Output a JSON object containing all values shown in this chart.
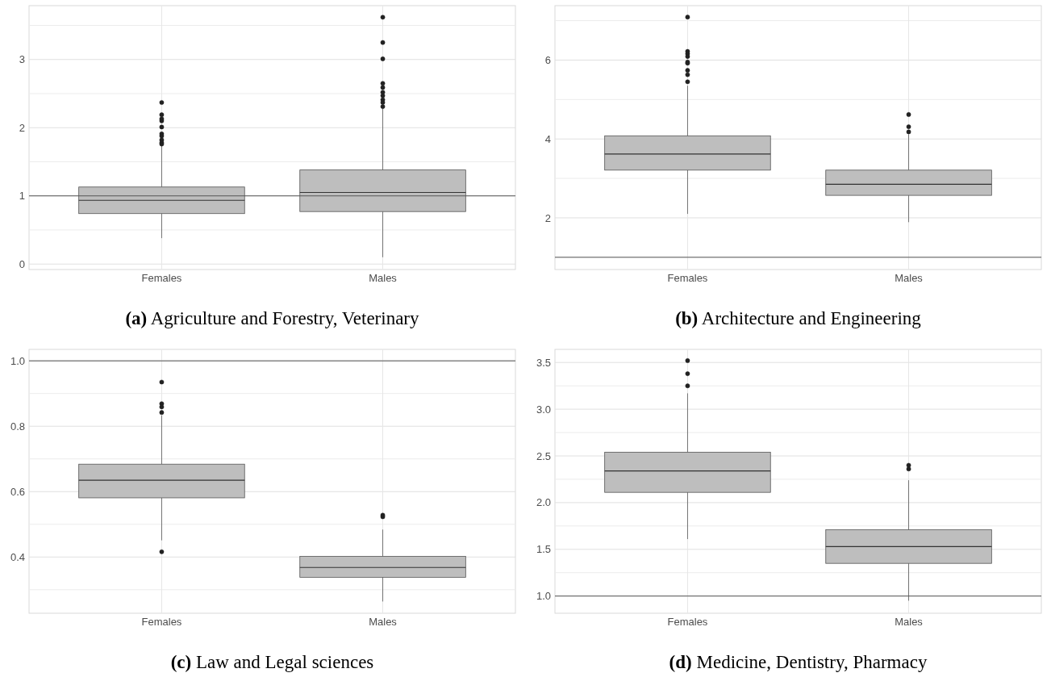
{
  "chart_data": [
    {
      "type": "box",
      "title": "(a) Agriculture and Forestry, Veterinary",
      "categories": [
        "Females",
        "Males"
      ],
      "color": "#bebebe",
      "grid": true,
      "ylim": [
        -0.08,
        3.79
      ],
      "yticks": [
        0,
        {
          "value": 0.5,
          "label": null
        },
        1,
        {
          "value": 1.5,
          "label": null
        },
        2,
        {
          "value": 2.5,
          "label": null
        },
        3,
        {
          "value": 3.5,
          "label": null
        }
      ],
      "boxes": [
        {
          "low": 0.38,
          "q1": 0.74,
          "median": 0.935,
          "q3": 1.13,
          "high": 1.73,
          "outliers": [
            2.37,
            2.19,
            2.13,
            2.1,
            2.01,
            1.91,
            1.88,
            1.82,
            1.78,
            1.76
          ]
        },
        {
          "low": 0.1,
          "q1": 0.77,
          "median": 1.05,
          "q3": 1.38,
          "high": 2.28,
          "outliers": [
            3.62,
            3.25,
            3.01,
            2.65,
            2.59,
            2.52,
            2.47,
            2.41,
            2.37,
            2.31
          ]
        }
      ],
      "ref_lines": [
        {
          "axis": "y",
          "value": 1
        }
      ]
    },
    {
      "type": "box",
      "title": "(b) Architecture and Engineering",
      "categories": [
        "Females",
        "Males"
      ],
      "color": "#bebebe",
      "grid": true,
      "ylim": [
        0.69,
        7.38
      ],
      "yticks": [
        {
          "value": 1,
          "label": null
        },
        2,
        {
          "value": 3,
          "label": null
        },
        4,
        {
          "value": 5,
          "label": null
        },
        6,
        {
          "value": 7,
          "label": null
        }
      ],
      "boxes": [
        {
          "low": 2.1,
          "q1": 3.21,
          "median": 3.62,
          "q3": 4.08,
          "high": 5.35,
          "outliers": [
            7.09,
            6.22,
            6.16,
            6.09,
            5.95,
            5.92,
            5.74,
            5.63,
            5.45
          ]
        },
        {
          "low": 1.89,
          "q1": 2.57,
          "median": 2.85,
          "q3": 3.21,
          "high": 4.12,
          "outliers": [
            4.62,
            4.31,
            4.18
          ]
        }
      ],
      "ref_lines": [
        {
          "axis": "y",
          "value": 1
        }
      ]
    },
    {
      "type": "box",
      "title": "(c) Law and Legal sciences",
      "categories": [
        "Females",
        "Males"
      ],
      "color": "#bebebe",
      "grid": true,
      "ylim": [
        0.228,
        1.035
      ],
      "yticks": [
        {
          "value": 0.3,
          "label": null
        },
        {
          "value": 0.4,
          "label": "0.4"
        },
        {
          "value": 0.5,
          "label": null
        },
        {
          "value": 0.6,
          "label": "0.6"
        },
        {
          "value": 0.7,
          "label": null
        },
        {
          "value": 0.8,
          "label": "0.8"
        },
        {
          "value": 0.9,
          "label": null
        },
        {
          "value": 1,
          "label": "1.0"
        }
      ],
      "boxes": [
        {
          "low": 0.451,
          "q1": 0.581,
          "median": 0.635,
          "q3": 0.684,
          "high": 0.833,
          "outliers": [
            0.935,
            0.869,
            0.859,
            0.842,
            0.416
          ]
        },
        {
          "low": 0.264,
          "q1": 0.338,
          "median": 0.368,
          "q3": 0.402,
          "high": 0.484,
          "outliers": [
            0.528,
            0.523
          ]
        }
      ],
      "ref_lines": [
        {
          "axis": "y",
          "value": 1
        }
      ]
    },
    {
      "type": "box",
      "title": "(d) Medicine, Dentistry, Pharmacy",
      "categories": [
        "Females",
        "Males"
      ],
      "color": "#bebebe",
      "grid": true,
      "ylim": [
        0.816,
        3.64
      ],
      "yticks": [
        {
          "value": 1,
          "label": "1.0"
        },
        {
          "value": 1.25,
          "label": null
        },
        1.5,
        {
          "value": 1.75,
          "label": null
        },
        {
          "value": 2,
          "label": "2.0"
        },
        {
          "value": 2.25,
          "label": null
        },
        2.5,
        {
          "value": 2.75,
          "label": null
        },
        {
          "value": 3,
          "label": "3.0"
        },
        {
          "value": 3.25,
          "label": null
        },
        3.5
      ],
      "boxes": [
        {
          "low": 1.61,
          "q1": 2.11,
          "median": 2.34,
          "q3": 2.54,
          "high": 3.17,
          "outliers": [
            3.52,
            3.38,
            3.25
          ]
        },
        {
          "low": 0.95,
          "q1": 1.35,
          "median": 1.53,
          "q3": 1.71,
          "high": 2.24,
          "outliers": [
            2.4,
            2.36
          ]
        }
      ],
      "ref_lines": [
        {
          "axis": "y",
          "value": 1
        }
      ]
    }
  ]
}
